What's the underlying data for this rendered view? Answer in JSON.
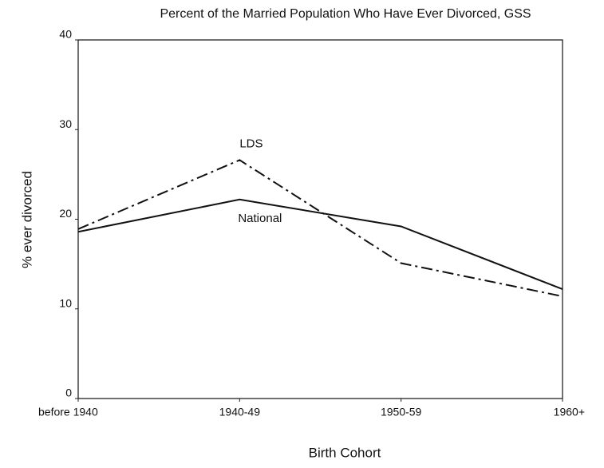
{
  "chart_data": {
    "type": "line",
    "title": "Percent of the Married Population Who Have Ever Divorced, GSS",
    "x_label": "Birth Cohort",
    "y_label": "% ever divorced",
    "categories": [
      "before 1940",
      "1940-49",
      "1950-59",
      "1960+"
    ],
    "series": [
      {
        "name": "LDS",
        "color": "#111111",
        "dash": "dashdot",
        "values": [
          18.9,
          26.6,
          15.1,
          11.4
        ]
      },
      {
        "name": "National",
        "color": "#111111",
        "dash": "solid",
        "values": [
          18.6,
          22.2,
          19.2,
          12.2
        ]
      }
    ],
    "ylim": [
      0,
      40
    ],
    "yticks": [
      0,
      10,
      20,
      30,
      40
    ],
    "grid": false,
    "legend": "inline"
  }
}
